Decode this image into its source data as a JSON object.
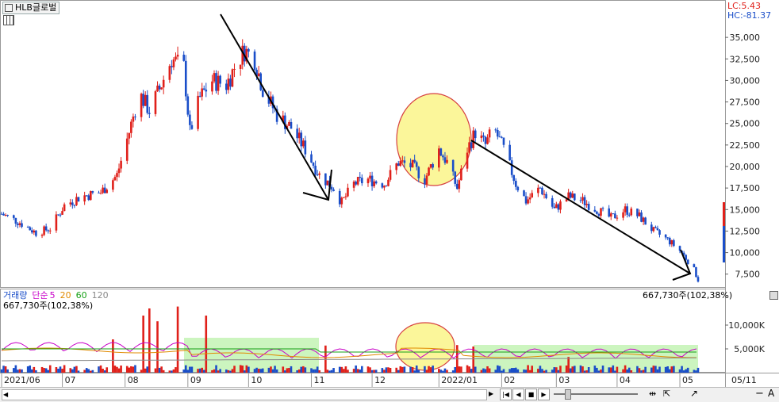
{
  "window": {
    "title": "HLB글로벌",
    "lc_label": "LC:5.43",
    "hc_label": "HC:-81.37"
  },
  "volume_panel": {
    "label": "거래량",
    "ma_label": "단순",
    "ma_periods": [
      "5",
      "20",
      "60",
      "120"
    ],
    "ma_colors": [
      "#c800c8",
      "#e08a00",
      "#16a016",
      "#888888"
    ],
    "summary_left": "667,730주(102,38%)",
    "summary_right": "667,730주(102,38%)",
    "y_ticks": [
      "10,000K",
      "5,000K"
    ]
  },
  "colors": {
    "up": "#e0201a",
    "down": "#1a4ec9",
    "annotation_arrow": "#000000",
    "circle_fill": "#fbf69a",
    "circle_stroke": "#d64040",
    "band_fill": "#ccf5bf"
  },
  "chart_data": {
    "type": "candlestick",
    "y_ticks": [
      "35,000",
      "32,500",
      "30,000",
      "27,500",
      "25,000",
      "22,500",
      "20,000",
      "17,500",
      "15,000",
      "12,500",
      "10,000",
      "7,500"
    ],
    "ylim": [
      6000,
      37500
    ],
    "x_ticks": [
      "2021/06",
      "07",
      "08",
      "09",
      "10",
      "11",
      "12",
      "2022/01",
      "02",
      "03",
      "04",
      "05"
    ],
    "right_axis_date": "05/11",
    "price_trace": [
      [
        "2021-06-01",
        14500
      ],
      [
        "2021-06-10",
        13500
      ],
      [
        "2021-06-18",
        12300
      ],
      [
        "2021-06-25",
        12800
      ],
      [
        "2021-07-02",
        15500
      ],
      [
        "2021-07-10",
        16500
      ],
      [
        "2021-07-20",
        17000
      ],
      [
        "2021-07-28",
        19000
      ],
      [
        "2021-08-03",
        24000
      ],
      [
        "2021-08-08",
        28500
      ],
      [
        "2021-08-13",
        26500
      ],
      [
        "2021-08-18",
        29000
      ],
      [
        "2021-08-24",
        32500
      ],
      [
        "2021-08-30",
        31500
      ],
      [
        "2021-09-02",
        24000
      ],
      [
        "2021-09-07",
        28000
      ],
      [
        "2021-09-13",
        30000
      ],
      [
        "2021-09-20",
        29500
      ],
      [
        "2021-09-24",
        31500
      ],
      [
        "2021-09-29",
        33500
      ],
      [
        "2021-10-04",
        32500
      ],
      [
        "2021-10-08",
        29000
      ],
      [
        "2021-10-15",
        26000
      ],
      [
        "2021-10-22",
        24500
      ],
      [
        "2021-10-29",
        22000
      ],
      [
        "2021-11-05",
        19000
      ],
      [
        "2021-11-12",
        17500
      ],
      [
        "2021-11-16",
        15800
      ],
      [
        "2021-11-22",
        18000
      ],
      [
        "2021-11-29",
        18500
      ],
      [
        "2021-12-07",
        18000
      ],
      [
        "2021-12-14",
        20500
      ],
      [
        "2021-12-21",
        20000
      ],
      [
        "2021-12-27",
        18500
      ],
      [
        "2022-01-03",
        22000
      ],
      [
        "2022-01-07",
        20500
      ],
      [
        "2022-01-12",
        17500
      ],
      [
        "2022-01-17",
        22000
      ],
      [
        "2022-01-21",
        24000
      ],
      [
        "2022-01-26",
        22500
      ],
      [
        "2022-01-30",
        24500
      ],
      [
        "2022-02-04",
        22000
      ],
      [
        "2022-02-10",
        18000
      ],
      [
        "2022-02-15",
        16000
      ],
      [
        "2022-02-22",
        17500
      ],
      [
        "2022-03-01",
        15000
      ],
      [
        "2022-03-08",
        16500
      ],
      [
        "2022-03-15",
        16000
      ],
      [
        "2022-03-22",
        15000
      ],
      [
        "2022-03-29",
        14000
      ],
      [
        "2022-04-05",
        15000
      ],
      [
        "2022-04-12",
        14200
      ],
      [
        "2022-04-19",
        12500
      ],
      [
        "2022-04-26",
        11500
      ],
      [
        "2022-05-03",
        10000
      ],
      [
        "2022-05-09",
        8000
      ],
      [
        "2022-05-11",
        6800
      ]
    ],
    "volume_ylim_k": [
      0,
      15000
    ],
    "volume_spikes": [
      {
        "date": "2021-07-26",
        "volume_k": 7000,
        "dir": "up"
      },
      {
        "date": "2021-08-10",
        "volume_k": 12000,
        "dir": "up"
      },
      {
        "date": "2021-08-13",
        "volume_k": 13500,
        "dir": "up"
      },
      {
        "date": "2021-08-17",
        "volume_k": 10800,
        "dir": "up"
      },
      {
        "date": "2021-08-27",
        "volume_k": 13900,
        "dir": "up"
      },
      {
        "date": "2021-09-10",
        "volume_k": 12000,
        "dir": "up"
      },
      {
        "date": "2021-11-08",
        "volume_k": 5700,
        "dir": "up"
      },
      {
        "date": "2022-01-12",
        "volume_k": 5800,
        "dir": "up"
      },
      {
        "date": "2022-01-20",
        "volume_k": 5500,
        "dir": "up"
      },
      {
        "date": "2022-03-08",
        "volume_k": 3300,
        "dir": "up"
      }
    ]
  }
}
